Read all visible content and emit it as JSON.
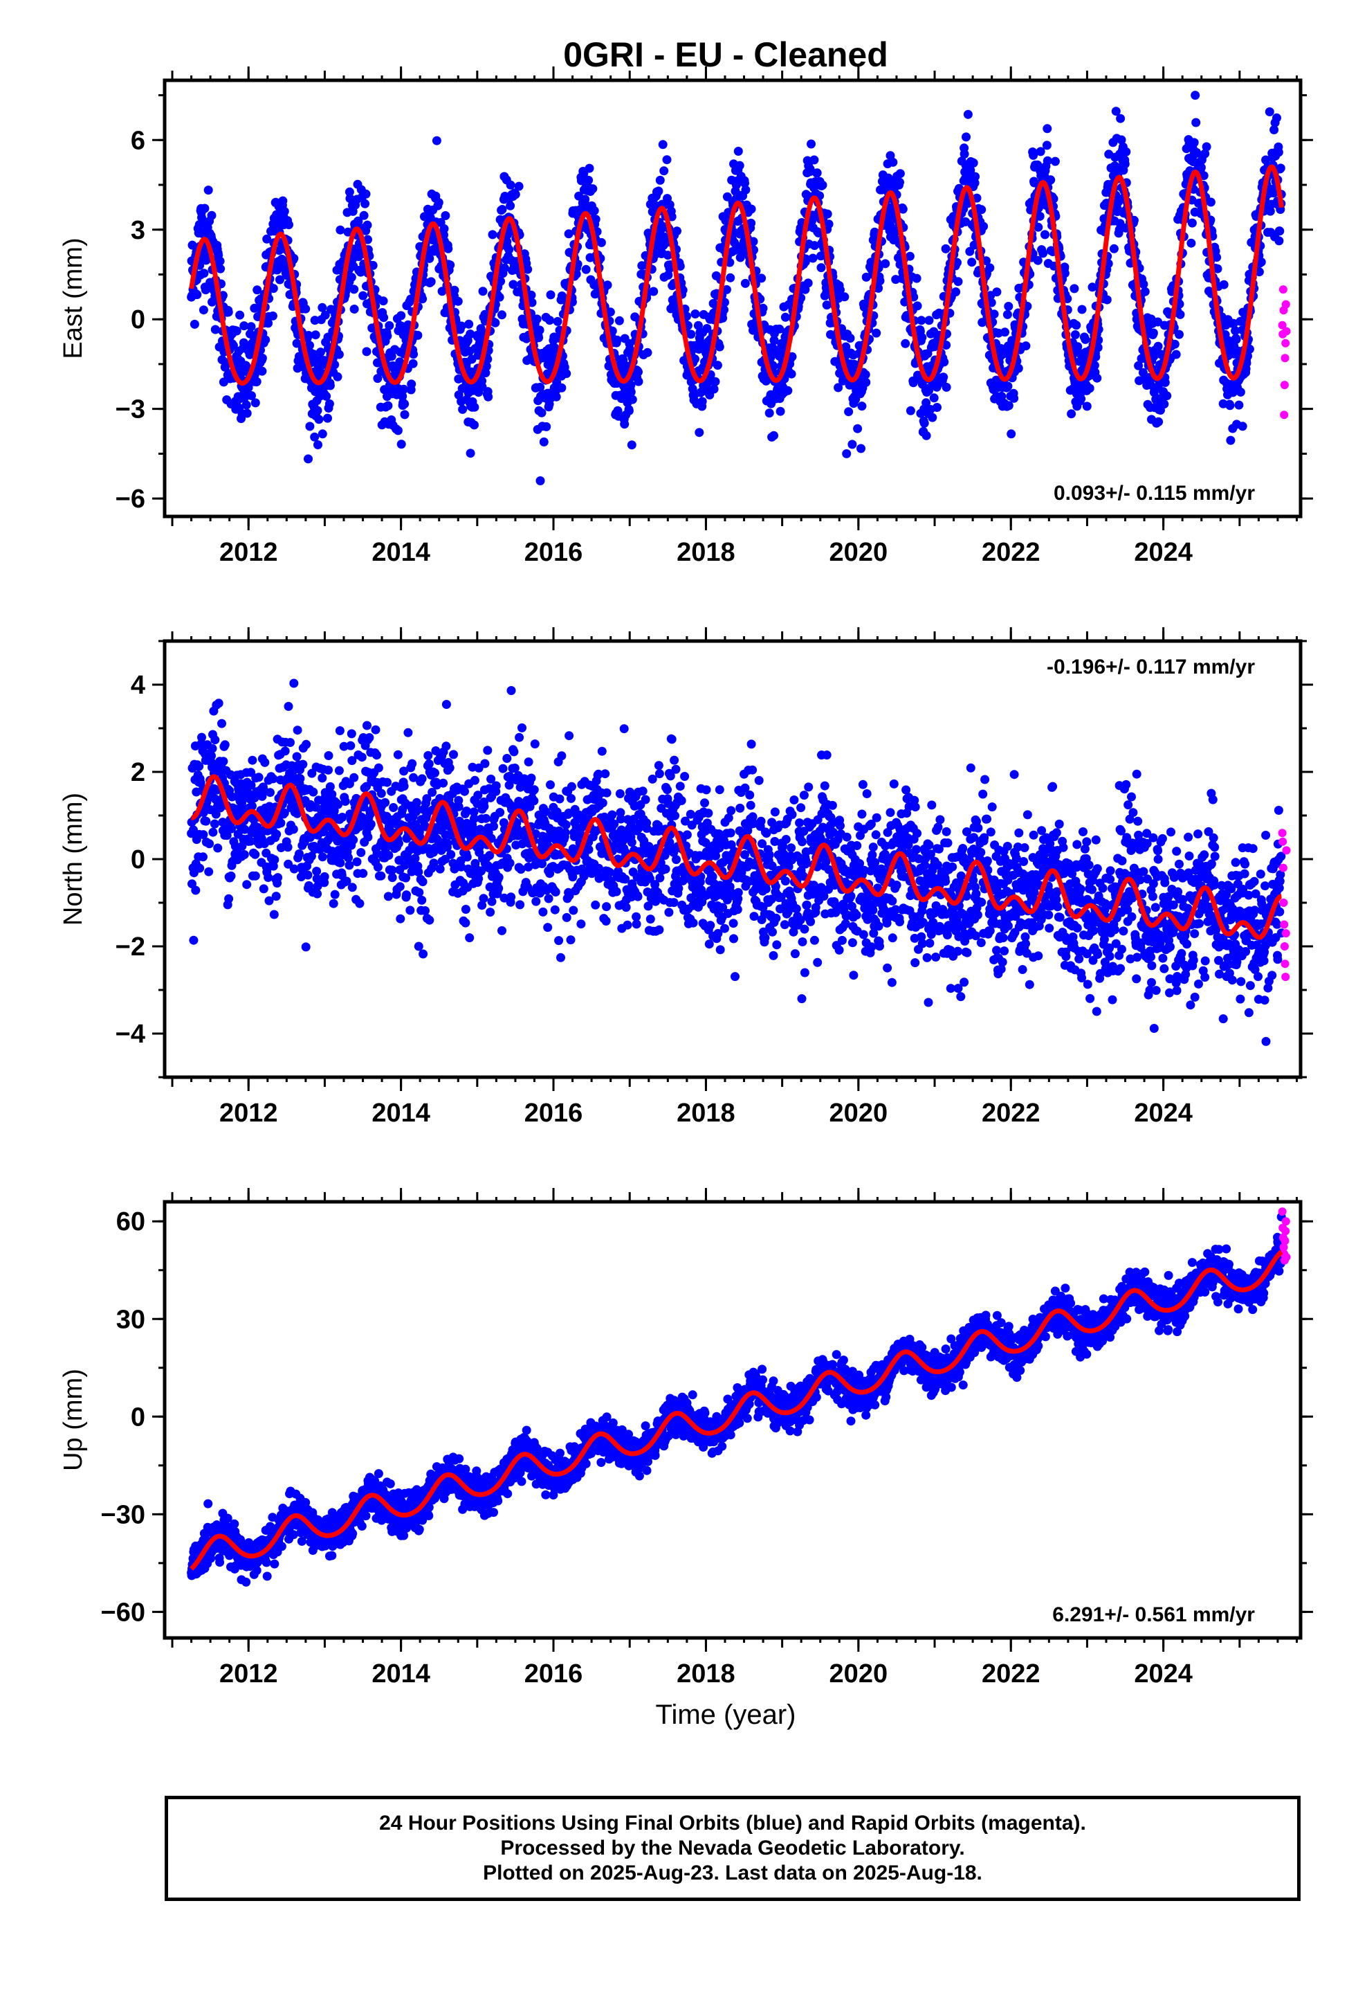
{
  "title": "0GRI  - EU - Cleaned",
  "xlabel": "Time (year)",
  "footer": {
    "line1": "24 Hour Positions Using Final Orbits (blue) and Rapid Orbits (magenta).",
    "line2": "Processed by the Nevada Geodetic Laboratory.",
    "line3": "Plotted on 2025-Aug-23. Last data on 2025-Aug-18."
  },
  "colors": {
    "final": "#0000ff",
    "rapid": "#ff00ff",
    "model": "#ff0000",
    "frame": "#000000"
  },
  "chart_data": [
    {
      "type": "scatter",
      "ylabel": "East (mm)",
      "xlim": [
        2010.9,
        2025.8
      ],
      "ylim": [
        -6.6,
        8.0
      ],
      "xticks": [
        "2012",
        "2014",
        "2016",
        "2018",
        "2020",
        "2022",
        "2024"
      ],
      "yticks": [
        "-6",
        "-3",
        "0",
        "3",
        "6"
      ],
      "rate_label": "0.093+/- 0.115 mm/yr",
      "series": [
        {
          "color": "blue",
          "note": "final orbits, daily positions",
          "model": {
            "t0": 2011.25,
            "t1": 2025.55,
            "offset": 0.0,
            "rate": 0.093,
            "annual_amp": 2.4,
            "annual_amp_growth": 0.08,
            "annual_peak": 0.42,
            "semiannual_amp": 0.25,
            "scatter": 0.9
          }
        },
        {
          "color": "magenta",
          "note": "rapid orbits",
          "y": [
            -0.2,
            -0.5,
            1.0,
            0.3,
            -3.2,
            -2.2,
            -1.3,
            -0.8,
            0.5,
            -0.4
          ]
        }
      ]
    },
    {
      "type": "scatter",
      "ylabel": "North (mm)",
      "xlim": [
        2010.9,
        2025.8
      ],
      "ylim": [
        -5.0,
        5.0
      ],
      "xticks": [
        "2012",
        "2014",
        "2016",
        "2018",
        "2020",
        "2022",
        "2024"
      ],
      "yticks": [
        "-4",
        "-2",
        "0",
        "2",
        "4"
      ],
      "rate_label": "-0.196+/- 0.117 mm/yr",
      "series": [
        {
          "color": "blue",
          "note": "final orbits, daily positions",
          "model": {
            "t0": 2011.25,
            "t1": 2025.55,
            "offset": 1.3,
            "rate": -0.196,
            "annual_amp": 0.35,
            "annual_peak": 0.55,
            "semiannual_amp": 0.3,
            "scatter": 0.85
          }
        },
        {
          "color": "magenta",
          "note": "rapid orbits",
          "y": [
            0.6,
            0.4,
            -0.2,
            -1.0,
            -1.5,
            -2.0,
            -2.4,
            -2.7,
            -1.7,
            0.2
          ]
        }
      ]
    },
    {
      "type": "scatter",
      "ylabel": "Up (mm)",
      "xlim": [
        2010.9,
        2025.8
      ],
      "ylim": [
        -68,
        66
      ],
      "xticks": [
        "2012",
        "2014",
        "2016",
        "2018",
        "2020",
        "2022",
        "2024"
      ],
      "yticks": [
        "-60",
        "-30",
        "0",
        "30",
        "60"
      ],
      "rate_label": "6.291+/- 0.561 mm/yr",
      "series": [
        {
          "color": "blue",
          "note": "final orbits, daily positions",
          "model": {
            "t0": 2011.25,
            "t1": 2025.55,
            "offset": -44.0,
            "rate": 6.291,
            "annual_amp": 4.5,
            "annual_peak": 0.6,
            "semiannual_amp": 0.5,
            "scatter": 3.0
          }
        },
        {
          "color": "magenta",
          "note": "rapid orbits",
          "y": [
            63,
            58,
            55,
            52,
            50,
            48,
            54,
            57,
            60,
            49
          ]
        }
      ]
    }
  ]
}
